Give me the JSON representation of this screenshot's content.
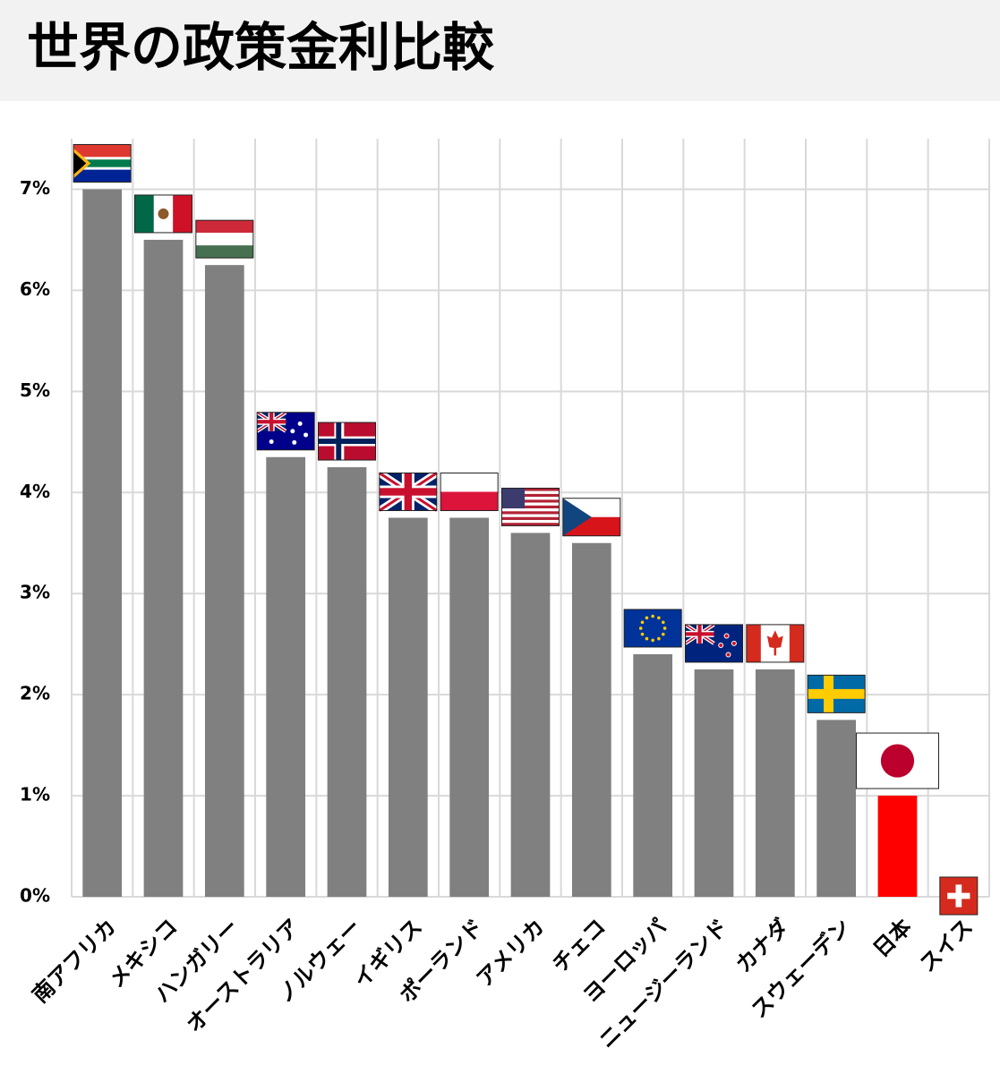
{
  "chart_data": {
    "type": "bar",
    "title": "世界の政策金利比較",
    "categories": [
      "南アフリカ",
      "メキシコ",
      "ハンガリー",
      "オーストラリア",
      "ノルウェー",
      "イギリス",
      "ポーランド",
      "アメリカ",
      "チェコ",
      "ヨーロッパ",
      "ニュージーランド",
      "カナダ",
      "スウェーデン",
      "日本",
      "スイス"
    ],
    "values": [
      7.0,
      6.5,
      6.25,
      4.35,
      4.25,
      3.75,
      3.75,
      3.6,
      3.5,
      2.4,
      2.25,
      2.25,
      1.75,
      1.0,
      0
    ],
    "colors": [
      "#808080",
      "#808080",
      "#808080",
      "#808080",
      "#808080",
      "#808080",
      "#808080",
      "#808080",
      "#808080",
      "#808080",
      "#808080",
      "#808080",
      "#808080",
      "#ff0000",
      "#808080"
    ],
    "ylim": [
      0,
      7.5
    ],
    "yticks": [
      {
        "value": 0,
        "label": "0%"
      },
      {
        "value": 1,
        "label": "1%"
      },
      {
        "value": 2,
        "label": "2%"
      },
      {
        "value": 3,
        "label": "3%"
      },
      {
        "value": 4,
        "label": "4%"
      },
      {
        "value": 5,
        "label": "5%"
      },
      {
        "value": 6,
        "label": "6%"
      },
      {
        "value": 7,
        "label": "7%"
      }
    ],
    "grid": true
  }
}
